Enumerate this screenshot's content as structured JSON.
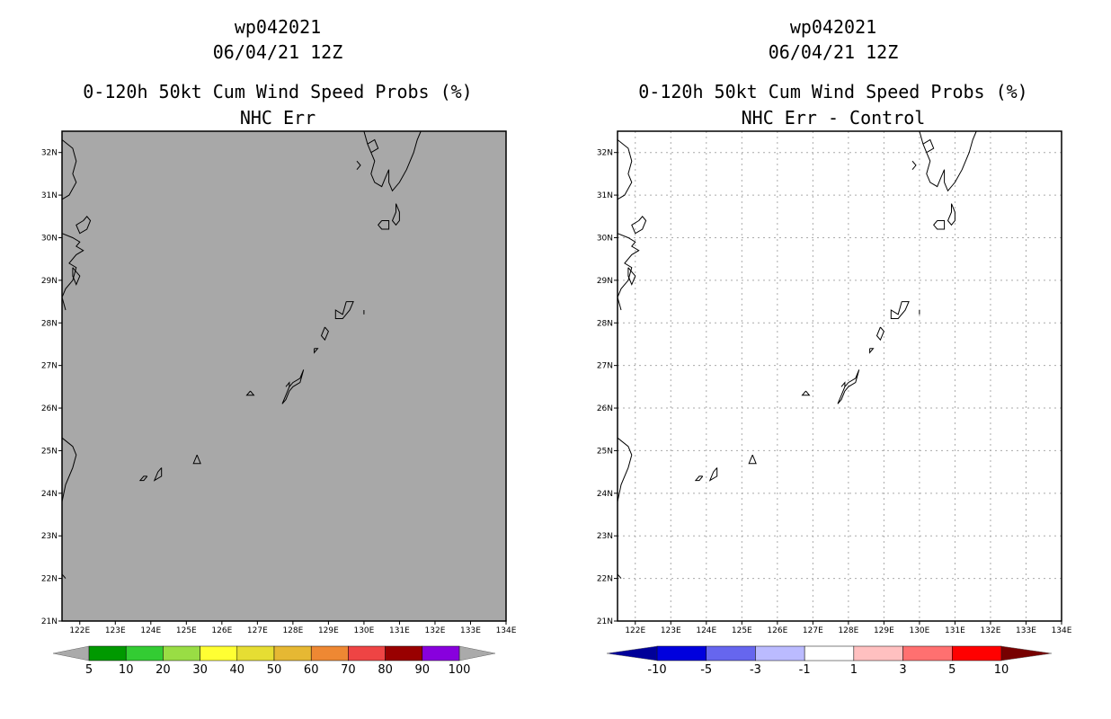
{
  "panels": [
    {
      "storm": "wp042021",
      "datetime": "06/04/21 12Z",
      "product": "0-120h 50kt Cum Wind Speed Probs (%)",
      "subtitle": "NHC Err",
      "background": "#a8a8a8",
      "gridlines": false,
      "colorbar": {
        "labels": [
          "5",
          "10",
          "20",
          "30",
          "40",
          "50",
          "60",
          "70",
          "80",
          "90",
          "100"
        ],
        "colors": [
          "#009900",
          "#33cc33",
          "#99dd44",
          "#ffff33",
          "#e6dd33",
          "#e6b833",
          "#ee8833",
          "#ee4444",
          "#990000",
          "#8800dd"
        ],
        "end_left": "#aaaaaa",
        "end_right": "#aaaaaa"
      }
    },
    {
      "storm": "wp042021",
      "datetime": "06/04/21 12Z",
      "product": "0-120h 50kt Cum Wind Speed Probs (%)",
      "subtitle": "NHC Err - Control",
      "background": "#ffffff",
      "gridlines": true,
      "colorbar": {
        "labels": [
          "-10",
          "-5",
          "-3",
          "-1",
          "1",
          "3",
          "5",
          "10"
        ],
        "colors": [
          "#0000dd",
          "#6666ee",
          "#bbbbff",
          "#ffffff",
          "#ffc0c0",
          "#ff7070",
          "#ff0000"
        ],
        "end_left": "#000099",
        "end_right": "#770000"
      }
    }
  ],
  "lat_labels": [
    "32N",
    "31N",
    "30N",
    "29N",
    "28N",
    "27N",
    "26N",
    "25N",
    "24N",
    "23N",
    "22N",
    "21N"
  ],
  "lon_labels": [
    "122E",
    "123E",
    "124E",
    "125E",
    "126E",
    "127E",
    "128E",
    "129E",
    "130E",
    "131E",
    "132E",
    "133E",
    "134E"
  ]
}
